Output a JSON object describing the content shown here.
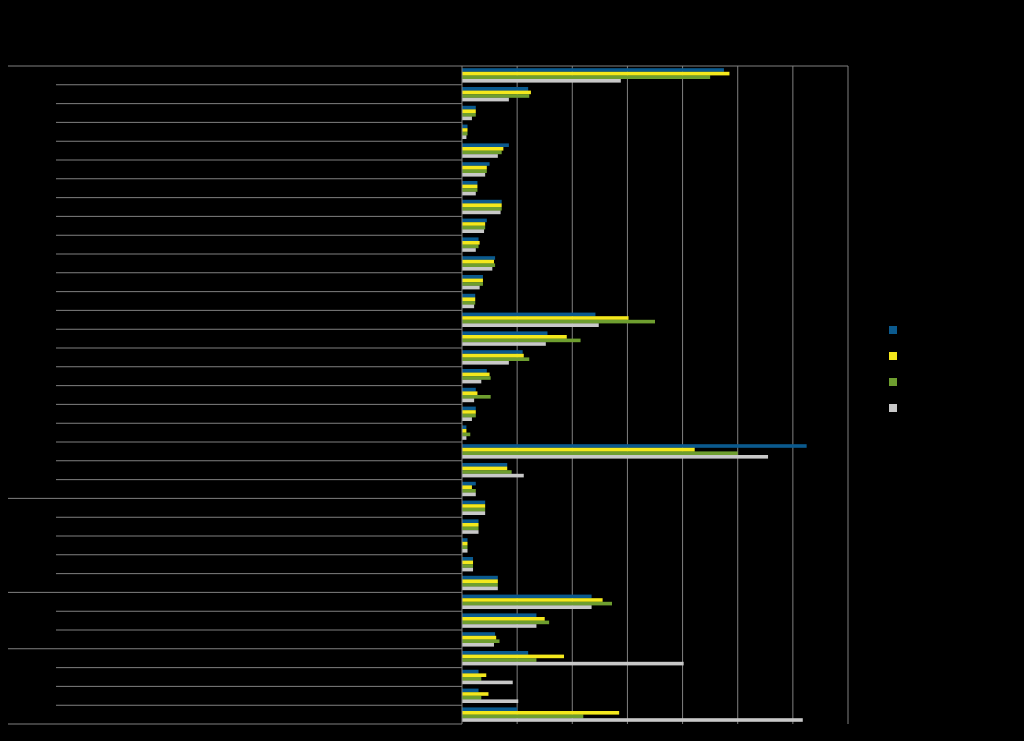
{
  "chart_data": {
    "type": "bar",
    "orientation": "horizontal",
    "title": "",
    "xlabel": "",
    "ylabel": "",
    "xlim": [
      0,
      7
    ],
    "grid": true,
    "legend_position": "right",
    "colors": {
      "background": "#000000",
      "gridline": "#808080",
      "s1": "#0B5A8E",
      "s2": "#F4E81C",
      "s3": "#6E9E2F",
      "s4": "#C8C8C8"
    },
    "categories": [
      "",
      "",
      "",
      "",
      "",
      "",
      "",
      "",
      "",
      "",
      "",
      "",
      "",
      "",
      "",
      "",
      "",
      "",
      "",
      "",
      "",
      "",
      "",
      "",
      "",
      "",
      "",
      "",
      "",
      "",
      "",
      "",
      "",
      "",
      ""
    ],
    "series": [
      {
        "values": [
          4.75,
          1.2,
          0.25,
          0.1,
          0.85,
          0.5,
          0.28,
          0.72,
          0.45,
          0.3,
          0.6,
          0.38,
          0.24,
          2.42,
          1.55,
          1.1,
          0.45,
          0.25,
          0.25,
          0.08,
          6.25,
          0.82,
          0.25,
          0.42,
          0.3,
          0.1,
          0.2,
          0.65,
          2.35,
          1.35,
          0.6,
          1.2,
          0.3,
          0.3,
          1.0
        ]
      },
      {
        "values": [
          4.85,
          1.25,
          0.25,
          0.1,
          0.75,
          0.45,
          0.28,
          0.72,
          0.42,
          0.32,
          0.58,
          0.38,
          0.24,
          3.02,
          1.9,
          1.12,
          0.5,
          0.28,
          0.25,
          0.08,
          4.22,
          0.82,
          0.18,
          0.42,
          0.3,
          0.1,
          0.2,
          0.65,
          2.55,
          1.5,
          0.62,
          1.85,
          0.44,
          0.48,
          2.85
        ]
      },
      {
        "values": [
          4.5,
          1.22,
          0.25,
          0.1,
          0.72,
          0.45,
          0.28,
          0.72,
          0.42,
          0.3,
          0.6,
          0.38,
          0.24,
          3.5,
          2.15,
          1.22,
          0.52,
          0.52,
          0.25,
          0.15,
          5.0,
          0.9,
          0.25,
          0.42,
          0.3,
          0.1,
          0.2,
          0.65,
          2.72,
          1.58,
          0.68,
          1.35,
          0.35,
          0.35,
          2.2
        ]
      },
      {
        "values": [
          2.88,
          0.85,
          0.18,
          0.08,
          0.65,
          0.42,
          0.25,
          0.7,
          0.4,
          0.25,
          0.55,
          0.32,
          0.22,
          2.48,
          1.52,
          0.85,
          0.35,
          0.22,
          0.18,
          0.08,
          5.55,
          1.12,
          0.25,
          0.42,
          0.3,
          0.1,
          0.2,
          0.65,
          2.35,
          1.35,
          0.58,
          4.02,
          0.92,
          1.02,
          6.18
        ]
      }
    ]
  }
}
